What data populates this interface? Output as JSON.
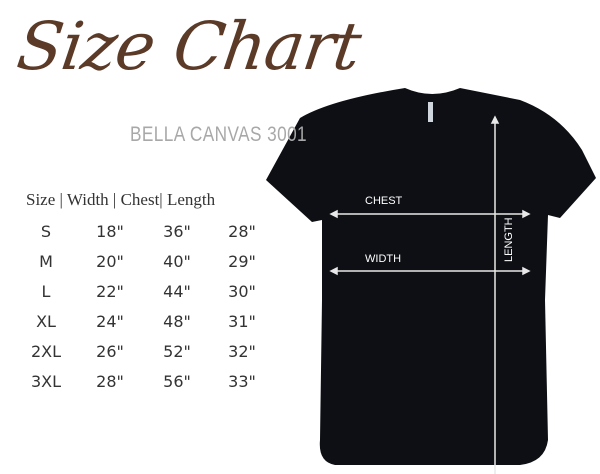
{
  "title": "Size Chart",
  "subtitle": "BELLA CANVAS 3001",
  "table": {
    "header": "Size | Width | Chest| Length",
    "rows": [
      {
        "size": "S",
        "width": "18\"",
        "chest": "36\"",
        "length": "28\""
      },
      {
        "size": "M",
        "width": "20\"",
        "chest": "40\"",
        "length": "29\""
      },
      {
        "size": "L",
        "width": "22\"",
        "chest": "44\"",
        "length": "30\""
      },
      {
        "size": "XL",
        "width": "24\"",
        "chest": "48\"",
        "length": "31\""
      },
      {
        "size": "2XL",
        "width": "26\"",
        "chest": "52\"",
        "length": "32\""
      },
      {
        "size": "3XL",
        "width": "28\"",
        "chest": "56\"",
        "length": "33\""
      }
    ]
  },
  "shirt": {
    "color": "#0e0f14",
    "labels": {
      "chest": "CHEST",
      "width": "WIDTH",
      "length": "LENGTH"
    }
  },
  "colors": {
    "title": "#5b3a28",
    "subtitle": "#a8a8a8"
  }
}
